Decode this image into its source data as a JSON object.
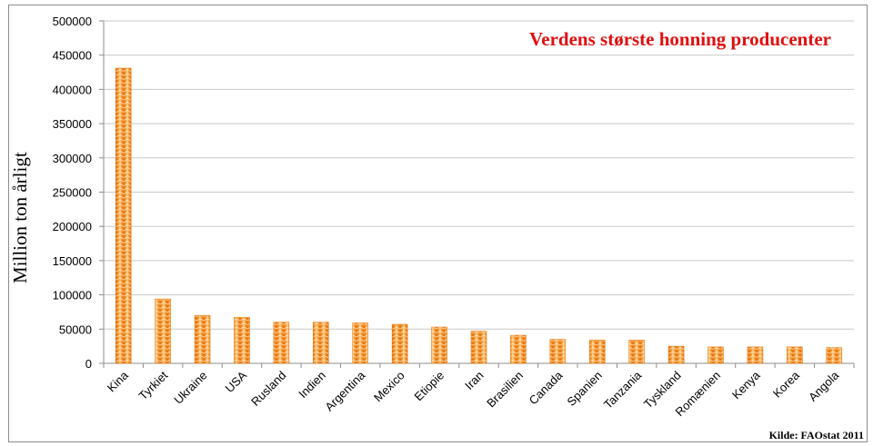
{
  "chart_data": {
    "type": "bar",
    "title": "Verdens største honning producenter",
    "ylabel": "Million  ton årligt",
    "xlabel": "",
    "source": "Kilde: FAOstat 2011",
    "ylim": [
      0,
      500000
    ],
    "yticks": [
      0,
      50000,
      100000,
      150000,
      200000,
      250000,
      300000,
      350000,
      400000,
      450000,
      500000
    ],
    "grid": true,
    "legend": "none",
    "bar_color": "#f08a1c",
    "bar_highlight": "#ffd79a",
    "title_color": "#e01010",
    "categories": [
      "Kina",
      "Tyrkiet",
      "Ukraine",
      "USA",
      "Rusland",
      "Indien",
      "Argentina",
      "Mexico",
      "Etiopie",
      "Iran",
      "Brasilien",
      "Canada",
      "Spanien",
      "Tanzania",
      "Tyskland",
      "Romænien",
      "Kenya",
      "Korea",
      "Angola"
    ],
    "values": [
      431000,
      94000,
      70000,
      67000,
      60000,
      60000,
      59000,
      57000,
      53000,
      47000,
      41000,
      35000,
      34000,
      34000,
      25000,
      24000,
      24000,
      24000,
      23000
    ]
  }
}
